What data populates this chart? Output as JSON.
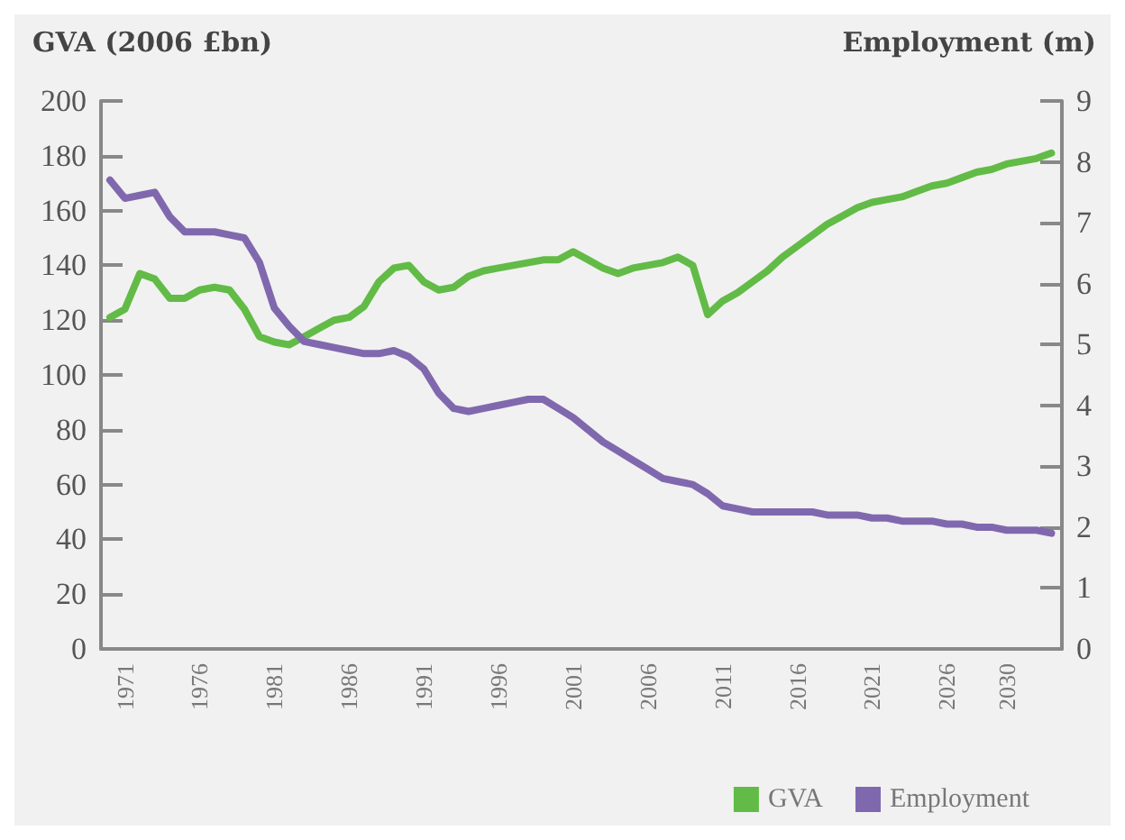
{
  "chart_data": {
    "type": "line",
    "ylabel": "GVA (2006 £bn)",
    "y2label": "Employment (m)",
    "x": [
      1970,
      1971,
      1972,
      1973,
      1974,
      1975,
      1976,
      1977,
      1978,
      1979,
      1980,
      1981,
      1982,
      1983,
      1984,
      1985,
      1986,
      1987,
      1988,
      1989,
      1990,
      1991,
      1992,
      1993,
      1994,
      1995,
      1996,
      1997,
      1998,
      1999,
      2000,
      2001,
      2002,
      2003,
      2004,
      2005,
      2006,
      2007,
      2008,
      2009,
      2010,
      2011,
      2012,
      2013,
      2014,
      2015,
      2016,
      2017,
      2018,
      2019,
      2020,
      2021,
      2022,
      2023,
      2024,
      2025,
      2026,
      2027,
      2028,
      2029,
      2030,
      2031,
      2032,
      2033
    ],
    "series": [
      {
        "name": "GVA",
        "color": "#62bb46",
        "values": [
          121,
          124,
          137,
          135,
          128,
          128,
          131,
          132,
          131,
          124,
          114,
          112,
          111,
          114,
          117,
          120,
          121,
          125,
          134,
          139,
          140,
          134,
          131,
          132,
          136,
          138,
          139,
          140,
          141,
          142,
          142,
          145,
          142,
          139,
          137,
          139,
          140,
          141,
          143,
          140,
          122,
          127,
          130,
          134,
          138,
          143,
          147,
          151,
          155,
          158,
          161,
          163,
          164,
          165,
          167,
          169,
          170,
          172,
          174,
          175,
          177,
          178,
          179,
          181
        ]
      },
      {
        "name": "Employment",
        "color": "#8068ae",
        "axis": "y2",
        "values": [
          7.7,
          7.4,
          7.45,
          7.5,
          7.1,
          6.85,
          6.85,
          6.85,
          6.8,
          6.75,
          6.35,
          5.6,
          5.3,
          5.05,
          5.0,
          4.95,
          4.9,
          4.85,
          4.85,
          4.9,
          4.8,
          4.6,
          4.2,
          3.95,
          3.9,
          3.95,
          4.0,
          4.05,
          4.1,
          4.1,
          3.95,
          3.8,
          3.6,
          3.4,
          3.25,
          3.1,
          2.95,
          2.8,
          2.75,
          2.7,
          2.55,
          2.35,
          2.3,
          2.25,
          2.25,
          2.25,
          2.25,
          2.25,
          2.2,
          2.2,
          2.2,
          2.15,
          2.15,
          2.1,
          2.1,
          2.1,
          2.05,
          2.05,
          2.0,
          2.0,
          1.95,
          1.95,
          1.95,
          1.9
        ]
      }
    ],
    "xlim": [
      1969.4,
      2033.7
    ],
    "xticks": [
      1971,
      1976,
      1981,
      1986,
      1991,
      1996,
      2001,
      2006,
      2011,
      2016,
      2021,
      2026,
      2030
    ],
    "ylim": [
      0,
      200
    ],
    "yticks": [
      0,
      20,
      40,
      60,
      80,
      100,
      120,
      140,
      160,
      180,
      200
    ],
    "y2lim": [
      0,
      9
    ],
    "y2ticks": [
      0,
      1,
      2,
      3,
      4,
      5,
      6,
      7,
      8,
      9
    ],
    "grid": false,
    "legend": "bottom right",
    "marker": "none",
    "line_style": "solid"
  }
}
